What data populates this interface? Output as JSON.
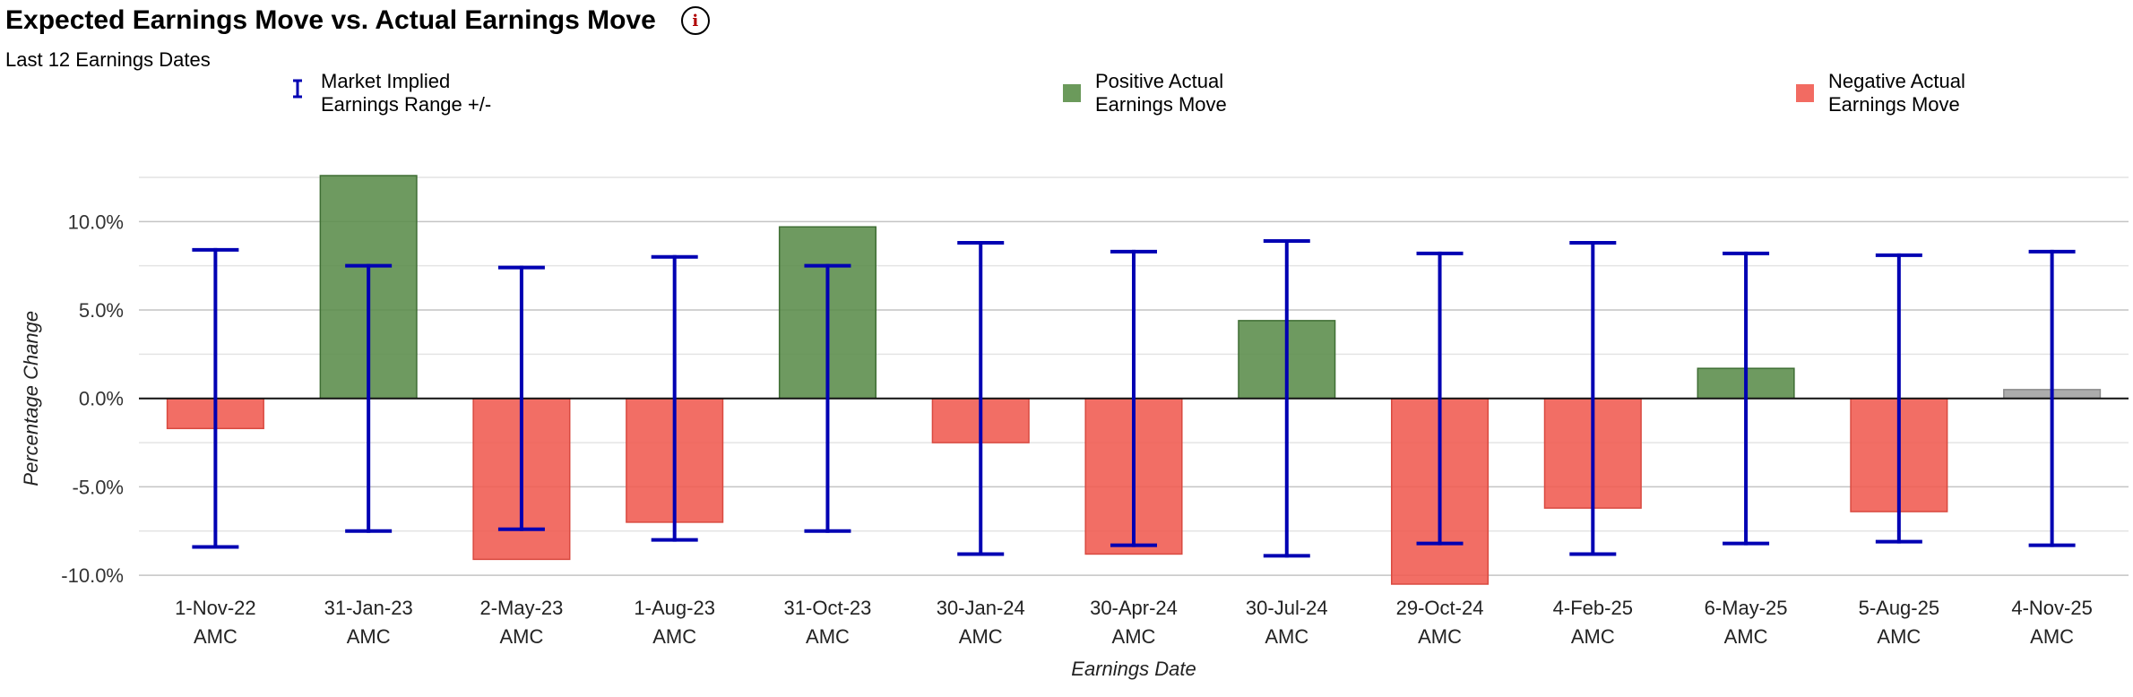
{
  "header": {
    "title": "Expected Earnings Move vs. Actual Earnings Move",
    "info_icon": "info-icon",
    "subtitle": "Last 12 Earnings Dates"
  },
  "legend": [
    {
      "kind": "errorbar",
      "line1": "Market Implied",
      "line2": "Earnings Range +/-",
      "color": "#0000b3"
    },
    {
      "kind": "swatch",
      "line1": "Positive Actual",
      "line2": "Earnings Move",
      "color": "#5a8c4a"
    },
    {
      "kind": "swatch",
      "line1": "Negative Actual",
      "line2": "Earnings Move",
      "color": "#f05a50"
    }
  ],
  "chart_data": {
    "type": "bar",
    "title": "Expected Earnings Move vs. Actual Earnings Move",
    "xlabel": "Earnings Date",
    "ylabel": "Percentage Change",
    "ylim": [
      -10.5,
      12.6
    ],
    "yticks": [
      -10,
      -5,
      0,
      5,
      10
    ],
    "ytick_labels": [
      "-10.0%",
      "-5.0%",
      "0.0%",
      "5.0%",
      "10.0%"
    ],
    "minor_gridlines": [
      -7.5,
      -2.5,
      2.5,
      7.5,
      12.5
    ],
    "colors": {
      "positive": "#5a8c4a",
      "negative": "#f05a50",
      "neutral": "#a0a0a0",
      "errorbar": "#0000b3"
    },
    "categories": [
      {
        "date": "1-Nov-22",
        "session": "AMC"
      },
      {
        "date": "31-Jan-23",
        "session": "AMC"
      },
      {
        "date": "2-May-23",
        "session": "AMC"
      },
      {
        "date": "1-Aug-23",
        "session": "AMC"
      },
      {
        "date": "31-Oct-23",
        "session": "AMC"
      },
      {
        "date": "30-Jan-24",
        "session": "AMC"
      },
      {
        "date": "30-Apr-24",
        "session": "AMC"
      },
      {
        "date": "30-Jul-24",
        "session": "AMC"
      },
      {
        "date": "29-Oct-24",
        "session": "AMC"
      },
      {
        "date": "4-Feb-25",
        "session": "AMC"
      },
      {
        "date": "6-May-25",
        "session": "AMC"
      },
      {
        "date": "5-Aug-25",
        "session": "AMC"
      },
      {
        "date": "4-Nov-25",
        "session": "AMC"
      }
    ],
    "series": [
      {
        "name": "Actual Earnings Move",
        "values": [
          -1.7,
          12.6,
          -9.1,
          -7.0,
          9.7,
          -2.5,
          -8.8,
          4.4,
          -10.5,
          -6.2,
          1.7,
          -6.4,
          0.5
        ]
      },
      {
        "name": "Market Implied Earnings Range +/-",
        "values": [
          8.4,
          7.5,
          7.4,
          8.0,
          7.5,
          8.8,
          8.3,
          8.9,
          8.2,
          8.8,
          8.2,
          8.1,
          8.3
        ]
      }
    ],
    "neutral_indices": [
      12
    ]
  }
}
